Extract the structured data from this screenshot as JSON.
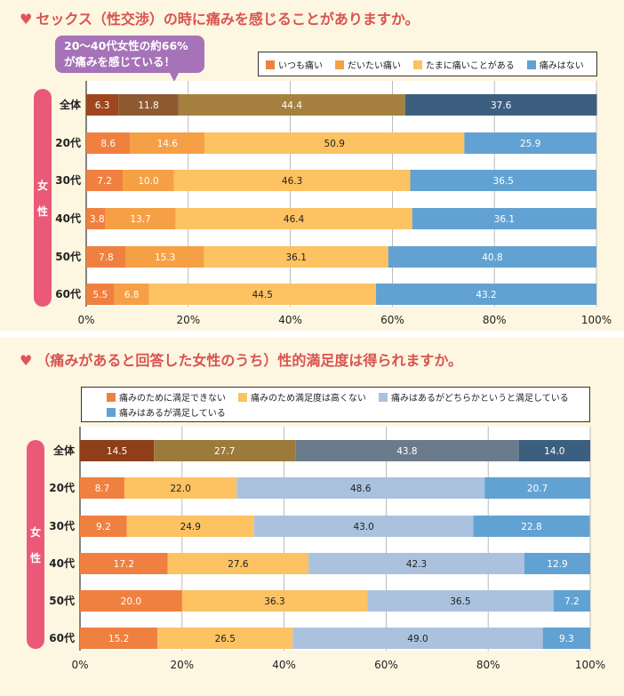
{
  "chart_data": [
    {
      "type": "bar",
      "orientation": "horizontal",
      "stacked": true,
      "title": "セックス（性交渉）の時に痛みを感じることがありますか。",
      "annotation": "20～40代女性の約66%が痛みを感じている！",
      "group_label": "女性",
      "categories": [
        "全体",
        "20代",
        "30代",
        "40代",
        "50代",
        "60代"
      ],
      "series": [
        {
          "name": "いつも痛い",
          "values": [
            6.3,
            8.6,
            7.2,
            3.8,
            7.8,
            5.5
          ],
          "color": "#f08040",
          "total_color": "#a0461e"
        },
        {
          "name": "だいたい痛い",
          "values": [
            11.8,
            14.6,
            10.0,
            13.7,
            15.3,
            6.8
          ],
          "color": "#f6a045",
          "total_color": "#8f5a32"
        },
        {
          "name": "たまに痛いことがある",
          "values": [
            44.4,
            50.9,
            46.3,
            46.4,
            36.1,
            44.5
          ],
          "color": "#fdc262",
          "total_color": "#a5803f"
        },
        {
          "name": "痛みはない",
          "values": [
            37.6,
            25.9,
            36.5,
            36.1,
            40.8,
            43.2
          ],
          "color": "#62a2d2",
          "total_color": "#3c5f80"
        }
      ],
      "xlim": [
        0,
        100
      ],
      "xticks": [
        "0%",
        "20%",
        "40%",
        "60%",
        "80%",
        "100%"
      ],
      "grid": true,
      "legend": "top-right"
    },
    {
      "type": "bar",
      "orientation": "horizontal",
      "stacked": true,
      "title": "（痛みがあると回答した女性のうち）性的満足度は得られますか。",
      "group_label": "女性",
      "categories": [
        "全体",
        "20代",
        "30代",
        "40代",
        "50代",
        "60代"
      ],
      "series": [
        {
          "name": "痛みのために満足できない",
          "values": [
            14.5,
            8.7,
            9.2,
            17.2,
            20.0,
            15.2
          ],
          "color": "#f08040",
          "total_color": "#8f3e1a"
        },
        {
          "name": "痛みのため満足度は高くない",
          "values": [
            27.7,
            22.0,
            24.9,
            27.6,
            36.3,
            26.5
          ],
          "color": "#fdc262",
          "total_color": "#9c7a3c"
        },
        {
          "name": "痛みはあるがどちらかというと満足している",
          "values": [
            43.8,
            48.6,
            43.0,
            42.3,
            36.5,
            49.0
          ],
          "color": "#aac2de",
          "total_color": "#6b7b8c"
        },
        {
          "name": "痛みはあるが満足している",
          "values": [
            14.0,
            20.7,
            22.8,
            12.9,
            7.2,
            9.3
          ],
          "color": "#62a2d2",
          "total_color": "#3c5f80"
        }
      ],
      "xlim": [
        0,
        100
      ],
      "xticks": [
        "0%",
        "20%",
        "40%",
        "60%",
        "80%",
        "100%"
      ],
      "grid": true,
      "legend": "top"
    }
  ]
}
